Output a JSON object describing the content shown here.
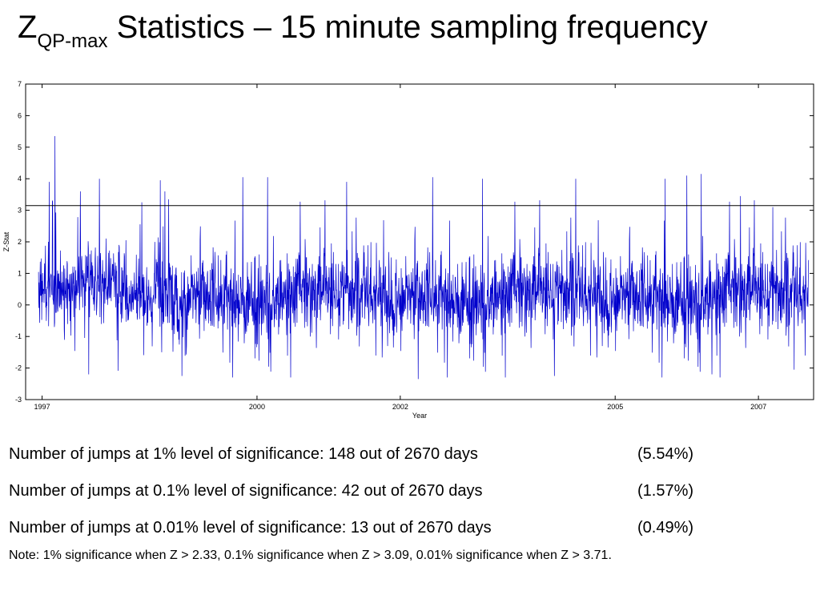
{
  "title": {
    "main": "Z",
    "subscript": "QP-max",
    "rest": " Statistics – 15 minute sampling frequency"
  },
  "chart_data": {
    "type": "line",
    "title": "",
    "xlabel": "Year",
    "ylabel": "Z-Stat",
    "xlim": [
      1996.62,
      2007.62
    ],
    "ylim": [
      -3,
      7
    ],
    "x_ticks": [
      {
        "value": 1996.85,
        "label": "1997"
      },
      {
        "value": 1999.85,
        "label": "2000"
      },
      {
        "value": 2001.85,
        "label": "2002"
      },
      {
        "value": 2004.85,
        "label": "2005"
      },
      {
        "value": 2006.85,
        "label": "2007"
      }
    ],
    "y_ticks": [
      -3,
      -2,
      -1,
      0,
      1,
      2,
      3,
      4,
      5,
      6,
      7
    ],
    "threshold": {
      "y": 3.15,
      "color": "#000000"
    },
    "series": [
      {
        "color": "#0000cc",
        "x_start": 1996.8,
        "x_end": 2007.55,
        "notable_spikes": [
          {
            "x": 1996.95,
            "y": 3.9
          },
          {
            "x": 1997.03,
            "y": 5.35
          },
          {
            "x": 1997.65,
            "y": 4.0
          },
          {
            "x": 1998.5,
            "y": 3.95
          },
          {
            "x": 1999.65,
            "y": 4.05
          },
          {
            "x": 2000.0,
            "y": 4.05
          },
          {
            "x": 2001.1,
            "y": 3.9
          },
          {
            "x": 2002.3,
            "y": 4.05
          },
          {
            "x": 2003.0,
            "y": 4.0
          },
          {
            "x": 2004.3,
            "y": 4.0
          },
          {
            "x": 2005.55,
            "y": 4.0
          },
          {
            "x": 2005.85,
            "y": 4.1
          },
          {
            "x": 2006.05,
            "y": 4.15
          },
          {
            "x": 2006.6,
            "y": 3.45
          },
          {
            "x": 2007.05,
            "y": 3.1
          },
          {
            "x": 1997.5,
            "y": -2.2
          },
          {
            "x": 1998.8,
            "y": -2.25
          },
          {
            "x": 2002.1,
            "y": -2.35
          },
          {
            "x": 2004.0,
            "y": -2.25
          },
          {
            "x": 2006.2,
            "y": -2.2
          },
          {
            "x": 2007.35,
            "y": -2.05
          }
        ]
      }
    ]
  },
  "stats": [
    {
      "text": "Number of jumps at 1% level of significance: 148 out of 2670 days",
      "pct": "(5.54%)"
    },
    {
      "text": "Number of jumps at 0.1% level of significance: 42 out of 2670 days",
      "pct": "(1.57%)"
    },
    {
      "text": "Number of jumps at 0.01% level of significance: 13 out of 2670 days",
      "pct": "(0.49%)"
    }
  ],
  "note": "Note: 1% significance when Z > 2.33, 0.1% significance when Z > 3.09, 0.01% significance when Z > 3.71."
}
